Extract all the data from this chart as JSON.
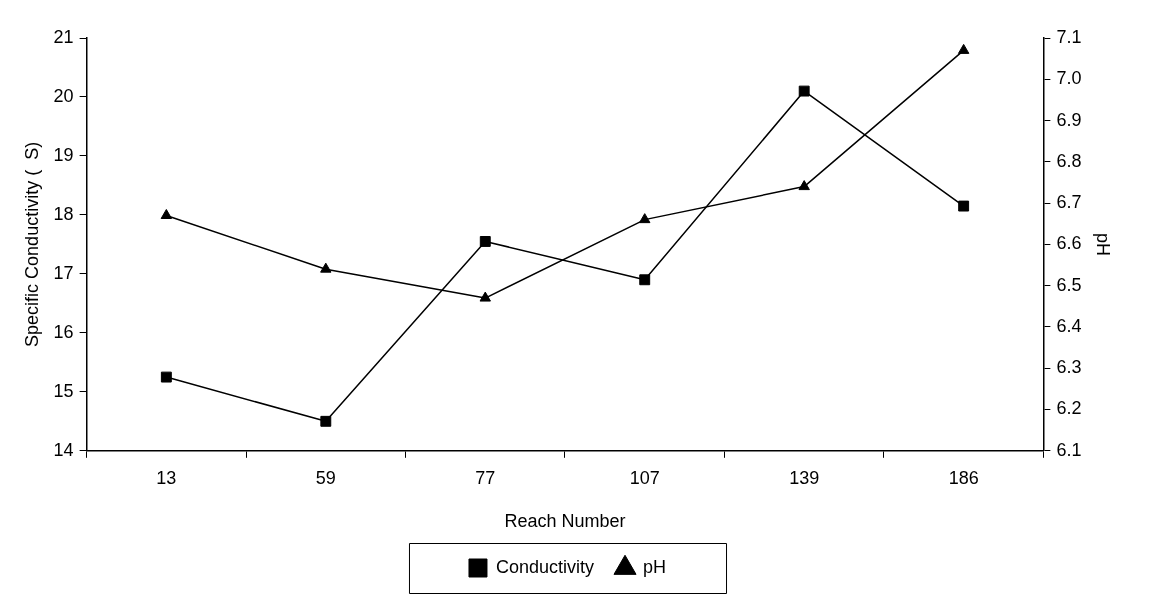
{
  "chart_data": {
    "type": "line",
    "xlabel": "Reach Number",
    "ylabel": "Specific Conductivity (  S)",
    "y2label": "pH",
    "categories": [
      "13",
      "59",
      "77",
      "107",
      "139",
      "186"
    ],
    "series": [
      {
        "name": "Conductivity",
        "color": "#000000",
        "marker": "square",
        "values": [
          15.25,
          14.5,
          17.55,
          16.9,
          20.1,
          18.15
        ]
      },
      {
        "name": "pH",
        "color": "#000000",
        "marker": "triangle",
        "axis": "y2",
        "values": [
          6.67,
          6.54,
          6.47,
          6.66,
          6.74,
          7.07
        ]
      }
    ],
    "ylim": [
      14,
      21
    ],
    "yticks": [
      14,
      15,
      16,
      17,
      18,
      19,
      20,
      21
    ],
    "y2lim": [
      6.1,
      7.1
    ],
    "y2ticks": [
      6.1,
      6.2,
      6.3,
      6.4,
      6.5,
      6.6,
      6.7,
      6.8,
      6.9,
      {
        "value": 7,
        "label": "7.0"
      },
      7.1
    ],
    "grid": false,
    "legend": "bottom",
    "line_style": "solid"
  }
}
